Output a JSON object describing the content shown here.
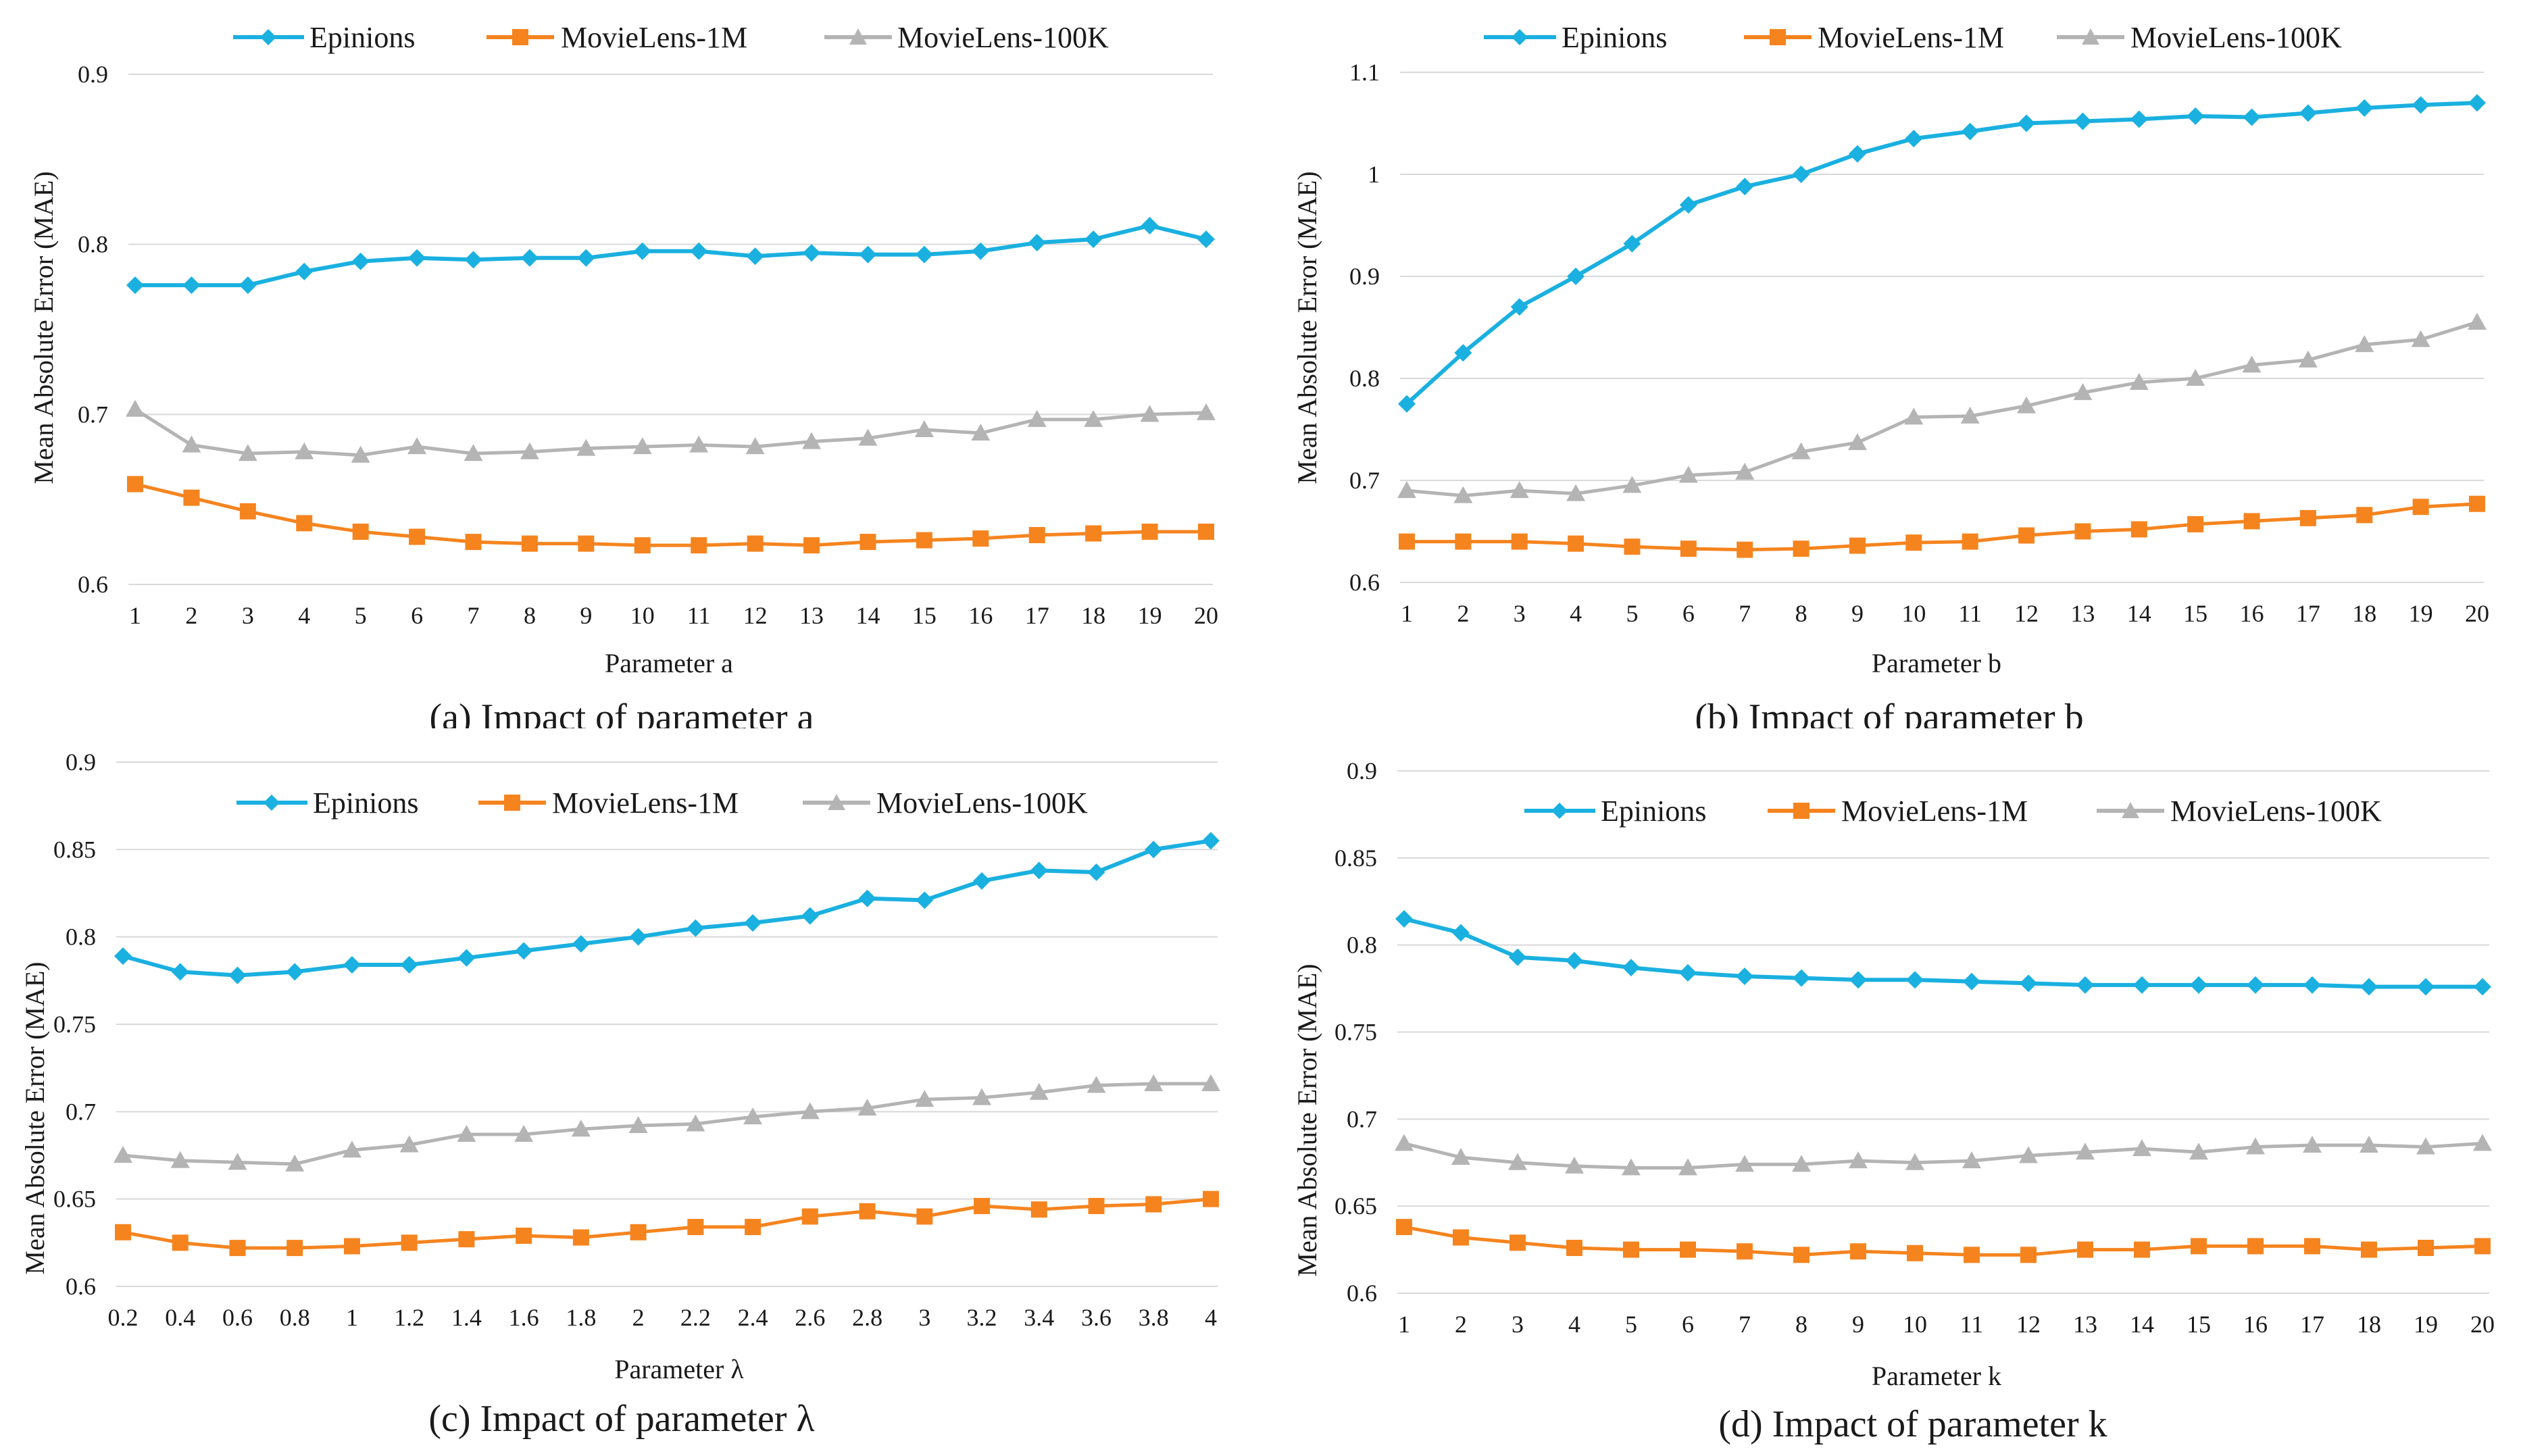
{
  "colors": {
    "epinions": "#1ab0e0",
    "ml1m": "#f5841f",
    "ml100k": "#b4b4b4",
    "grid": "#d9d9d9"
  },
  "chart_data": [
    {
      "id": "a",
      "type": "line",
      "caption": "(a) Impact of parameter a",
      "xlabel": "Parameter a",
      "ylabel": "Mean Absolute Error (MAE)",
      "categories": [
        "1",
        "2",
        "3",
        "4",
        "5",
        "6",
        "7",
        "8",
        "9",
        "10",
        "11",
        "12",
        "13",
        "14",
        "15",
        "16",
        "17",
        "18",
        "19",
        "20"
      ],
      "ylim": [
        0.6,
        0.9
      ],
      "yticks": [
        0.6,
        0.7,
        0.8,
        0.9
      ],
      "ytick_labels": [
        "0.6",
        "0.7",
        "0.8",
        "0.9"
      ],
      "legend": [
        "Epinions",
        "MovieLens-1M",
        "MovieLens-100K"
      ],
      "series": [
        {
          "name": "Epinions",
          "marker": "diamond",
          "values": [
            0.776,
            0.776,
            0.776,
            0.784,
            0.79,
            0.792,
            0.791,
            0.792,
            0.792,
            0.796,
            0.796,
            0.793,
            0.795,
            0.794,
            0.794,
            0.796,
            0.801,
            0.803,
            0.811,
            0.803
          ]
        },
        {
          "name": "MovieLens-1M",
          "marker": "square",
          "values": [
            0.659,
            0.651,
            0.643,
            0.636,
            0.631,
            0.628,
            0.625,
            0.624,
            0.624,
            0.623,
            0.623,
            0.624,
            0.623,
            0.625,
            0.626,
            0.627,
            0.629,
            0.63,
            0.631,
            0.631
          ]
        },
        {
          "name": "MovieLens-100K",
          "marker": "triangle",
          "values": [
            0.703,
            0.682,
            0.677,
            0.678,
            0.676,
            0.681,
            0.677,
            0.678,
            0.68,
            0.681,
            0.682,
            0.681,
            0.684,
            0.686,
            0.691,
            0.689,
            0.697,
            0.697,
            0.7,
            0.701
          ]
        }
      ]
    },
    {
      "id": "b",
      "type": "line",
      "caption": "(b) Impact of parameter b",
      "xlabel": "Parameter b",
      "ylabel": "Mean Absolute Error (MAE)",
      "categories": [
        "1",
        "2",
        "3",
        "4",
        "5",
        "6",
        "7",
        "8",
        "9",
        "10",
        "11",
        "12",
        "13",
        "14",
        "15",
        "16",
        "17",
        "18",
        "19",
        "20"
      ],
      "ylim": [
        0.6,
        1.1
      ],
      "yticks": [
        0.6,
        0.7,
        0.8,
        0.9,
        1.0,
        1.1
      ],
      "ytick_labels": [
        "0.6",
        "0.7",
        "0.8",
        "0.9",
        "1",
        "1.1"
      ],
      "legend": [
        "Epinions",
        "MovieLens-1M",
        "MovieLens-100K"
      ],
      "series": [
        {
          "name": "Epinions",
          "marker": "diamond",
          "values": [
            0.775,
            0.825,
            0.87,
            0.9,
            0.932,
            0.97,
            0.988,
            1.0,
            1.02,
            1.035,
            1.042,
            1.05,
            1.052,
            1.054,
            1.057,
            1.056,
            1.06,
            1.065,
            1.068,
            1.07
          ]
        },
        {
          "name": "MovieLens-1M",
          "marker": "square",
          "values": [
            0.64,
            0.64,
            0.64,
            0.638,
            0.635,
            0.633,
            0.632,
            0.633,
            0.636,
            0.639,
            0.64,
            0.646,
            0.65,
            0.652,
            0.657,
            0.66,
            0.663,
            0.666,
            0.674,
            0.677
          ]
        },
        {
          "name": "MovieLens-100K",
          "marker": "triangle",
          "values": [
            0.69,
            0.685,
            0.69,
            0.687,
            0.695,
            0.705,
            0.708,
            0.728,
            0.737,
            0.762,
            0.763,
            0.773,
            0.786,
            0.796,
            0.8,
            0.813,
            0.818,
            0.833,
            0.838,
            0.855
          ]
        }
      ]
    },
    {
      "id": "c",
      "type": "line",
      "caption": "(c) Impact of parameter λ",
      "xlabel": "Parameter λ",
      "ylabel": "Mean Absolute Error (MAE)",
      "categories": [
        "0.2",
        "0.4",
        "0.6",
        "0.8",
        "1",
        "1.2",
        "1.4",
        "1.6",
        "1.8",
        "2",
        "2.2",
        "2.4",
        "2.6",
        "2.8",
        "3",
        "3.2",
        "3.4",
        "3.6",
        "3.8",
        "4"
      ],
      "ylim": [
        0.6,
        0.9
      ],
      "yticks": [
        0.6,
        0.65,
        0.7,
        0.75,
        0.8,
        0.85,
        0.9
      ],
      "ytick_labels": [
        "0.6",
        "0.65",
        "0.7",
        "0.75",
        "0.8",
        "0.85",
        "0.9"
      ],
      "legend": [
        "Epinions",
        "MovieLens-1M",
        "MovieLens-100K"
      ],
      "series": [
        {
          "name": "Epinions",
          "marker": "diamond",
          "values": [
            0.789,
            0.78,
            0.778,
            0.78,
            0.784,
            0.784,
            0.788,
            0.792,
            0.796,
            0.8,
            0.805,
            0.808,
            0.812,
            0.822,
            0.821,
            0.832,
            0.838,
            0.837,
            0.85,
            0.855
          ]
        },
        {
          "name": "MovieLens-1M",
          "marker": "square",
          "values": [
            0.631,
            0.625,
            0.622,
            0.622,
            0.623,
            0.625,
            0.627,
            0.629,
            0.628,
            0.631,
            0.634,
            0.634,
            0.64,
            0.643,
            0.64,
            0.646,
            0.644,
            0.646,
            0.647,
            0.65
          ]
        },
        {
          "name": "MovieLens-100K",
          "marker": "triangle",
          "values": [
            0.675,
            0.672,
            0.671,
            0.67,
            0.678,
            0.681,
            0.687,
            0.687,
            0.69,
            0.692,
            0.693,
            0.697,
            0.7,
            0.702,
            0.707,
            0.708,
            0.711,
            0.715,
            0.716,
            0.716
          ]
        }
      ]
    },
    {
      "id": "d",
      "type": "line",
      "caption": "(d) Impact of parameter k",
      "xlabel": "Parameter k",
      "ylabel": "Mean Absolute Error (MAE)",
      "categories": [
        "1",
        "2",
        "3",
        "4",
        "5",
        "6",
        "7",
        "8",
        "9",
        "10",
        "11",
        "12",
        "13",
        "14",
        "15",
        "16",
        "17",
        "18",
        "19",
        "20"
      ],
      "ylim": [
        0.6,
        0.9
      ],
      "yticks": [
        0.6,
        0.65,
        0.7,
        0.75,
        0.8,
        0.85,
        0.9
      ],
      "ytick_labels": [
        "0.6",
        "0.65",
        "0.7",
        "0.75",
        "0.8",
        "0.85",
        "0.9"
      ],
      "legend": [
        "Epinions",
        "MovieLens-1M",
        "MovieLens-100K"
      ],
      "series": [
        {
          "name": "Epinions",
          "marker": "diamond",
          "values": [
            0.815,
            0.807,
            0.793,
            0.791,
            0.787,
            0.784,
            0.782,
            0.781,
            0.78,
            0.78,
            0.779,
            0.778,
            0.777,
            0.777,
            0.777,
            0.777,
            0.777,
            0.776,
            0.776,
            0.776
          ]
        },
        {
          "name": "MovieLens-1M",
          "marker": "square",
          "values": [
            0.638,
            0.632,
            0.629,
            0.626,
            0.625,
            0.625,
            0.624,
            0.622,
            0.624,
            0.623,
            0.622,
            0.622,
            0.625,
            0.625,
            0.627,
            0.627,
            0.627,
            0.625,
            0.626,
            0.627
          ]
        },
        {
          "name": "MovieLens-100K",
          "marker": "triangle",
          "values": [
            0.686,
            0.678,
            0.675,
            0.673,
            0.672,
            0.672,
            0.674,
            0.674,
            0.676,
            0.675,
            0.676,
            0.679,
            0.681,
            0.683,
            0.681,
            0.684,
            0.685,
            0.685,
            0.684,
            0.686
          ]
        }
      ]
    }
  ]
}
